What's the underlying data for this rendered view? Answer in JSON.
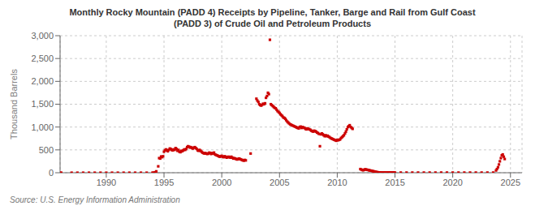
{
  "chart_data": {
    "type": "scatter",
    "title": "Monthly Rocky Mountain (PADD 4) Receipts by Pipeline, Tanker, Barge and Rail from Gulf Coast\n(PADD 3) of Crude Oil and Petroleum Products",
    "y_label": "Thousand Barrels",
    "annotations": [
      "Source: U.S. Energy Information Administration"
    ],
    "color": "#cc0000",
    "marker": "square",
    "grid": true,
    "xlim": [
      1986,
      2026
    ],
    "ylim": [
      0,
      3000
    ],
    "xticks": [
      1990,
      1995,
      2000,
      2005,
      2010,
      2015,
      2020,
      2025
    ],
    "yticks": [
      0,
      500,
      {
        "value": 1000,
        "label": "1,000"
      },
      {
        "value": 1500,
        "label": "1,500"
      },
      {
        "value": 2000,
        "label": "2,000"
      },
      {
        "value": 2500,
        "label": "2,500"
      },
      {
        "value": 3000,
        "label": "3,000"
      }
    ],
    "x": [
      1986.0,
      1986.1,
      1987.0,
      1987.5,
      1988.0,
      1988.5,
      1989.0,
      1989.5,
      1990.0,
      1990.5,
      1991.0,
      1991.5,
      1992.0,
      1992.5,
      1993.0,
      1993.5,
      1994.0,
      1994.08,
      1994.17,
      1994.25,
      1994.33,
      1994.5,
      1994.58,
      1994.67,
      1994.75,
      1994.83,
      1994.92,
      1995.0,
      1995.08,
      1995.17,
      1995.25,
      1995.33,
      1995.42,
      1995.5,
      1995.58,
      1995.67,
      1995.75,
      1995.83,
      1995.92,
      1996.0,
      1996.08,
      1996.17,
      1996.25,
      1996.33,
      1996.42,
      1996.5,
      1996.58,
      1996.67,
      1996.75,
      1996.83,
      1996.92,
      1997.0,
      1997.08,
      1997.17,
      1997.25,
      1997.33,
      1997.42,
      1997.5,
      1997.58,
      1997.67,
      1997.75,
      1997.83,
      1997.92,
      1998.0,
      1998.08,
      1998.17,
      1998.25,
      1998.33,
      1998.42,
      1998.5,
      1998.58,
      1998.67,
      1998.75,
      1998.83,
      1998.92,
      1999.0,
      1999.08,
      1999.17,
      1999.25,
      1999.33,
      1999.42,
      1999.5,
      1999.58,
      1999.67,
      1999.75,
      1999.83,
      1999.92,
      2000.0,
      2000.08,
      2000.17,
      2000.25,
      2000.33,
      2000.42,
      2000.5,
      2000.58,
      2000.67,
      2000.75,
      2000.83,
      2000.92,
      2001.0,
      2001.08,
      2001.17,
      2001.25,
      2001.33,
      2001.42,
      2001.5,
      2001.58,
      2001.67,
      2001.75,
      2001.83,
      2001.92,
      2002.0,
      2002.08,
      2002.5,
      2003.0,
      2003.08,
      2003.17,
      2003.25,
      2003.33,
      2003.42,
      2003.5,
      2003.58,
      2003.67,
      2003.75,
      2003.83,
      2003.92,
      2004.0,
      2004.08,
      2004.17,
      2004.25,
      2004.33,
      2004.42,
      2004.5,
      2004.58,
      2004.67,
      2004.75,
      2004.83,
      2004.92,
      2005.0,
      2005.08,
      2005.17,
      2005.25,
      2005.33,
      2005.42,
      2005.5,
      2005.58,
      2005.67,
      2005.75,
      2005.83,
      2005.92,
      2006.0,
      2006.08,
      2006.17,
      2006.25,
      2006.33,
      2006.42,
      2006.5,
      2006.58,
      2006.67,
      2006.75,
      2006.83,
      2006.92,
      2007.0,
      2007.08,
      2007.17,
      2007.25,
      2007.33,
      2007.42,
      2007.5,
      2007.58,
      2007.67,
      2007.75,
      2007.83,
      2007.92,
      2008.0,
      2008.08,
      2008.17,
      2008.25,
      2008.33,
      2008.42,
      2008.5,
      2008.58,
      2008.67,
      2008.75,
      2008.83,
      2008.92,
      2009.0,
      2009.08,
      2009.17,
      2009.25,
      2009.33,
      2009.42,
      2009.5,
      2009.58,
      2009.67,
      2009.75,
      2009.83,
      2009.92,
      2010.0,
      2010.08,
      2010.17,
      2010.25,
      2010.33,
      2010.42,
      2010.5,
      2010.58,
      2010.67,
      2010.75,
      2010.83,
      2010.92,
      2011.0,
      2011.08,
      2011.17,
      2011.25,
      2011.33,
      2012.0,
      2012.08,
      2012.17,
      2012.25,
      2012.33,
      2012.42,
      2012.5,
      2012.58,
      2012.67,
      2012.75,
      2012.83,
      2012.92,
      2013.0,
      2013.08,
      2013.17,
      2013.25,
      2013.33,
      2013.42,
      2013.5,
      2013.58,
      2013.67,
      2013.75,
      2013.83,
      2013.92,
      2014.0,
      2014.08,
      2014.17,
      2014.25,
      2014.33,
      2014.42,
      2014.5,
      2014.58,
      2014.67,
      2014.75,
      2014.83,
      2014.92,
      2015.0,
      2015.5,
      2016.0,
      2016.5,
      2017.0,
      2017.5,
      2018.0,
      2018.5,
      2019.0,
      2019.5,
      2020.0,
      2020.5,
      2021.0,
      2021.5,
      2022.0,
      2022.5,
      2023.0,
      2023.5,
      2023.75,
      2023.83,
      2023.92,
      2024.0,
      2024.08,
      2024.17,
      2024.25,
      2024.33,
      2024.42,
      2024.5
    ],
    "values": [
      0,
      0,
      0,
      0,
      0,
      0,
      0,
      0,
      0,
      0,
      0,
      0,
      0,
      0,
      0,
      0,
      0,
      0,
      0,
      10,
      30,
      140,
      320,
      310,
      355,
      340,
      360,
      460,
      490,
      510,
      490,
      470,
      500,
      530,
      520,
      500,
      490,
      510,
      500,
      540,
      520,
      480,
      500,
      460,
      450,
      480,
      470,
      490,
      510,
      500,
      520,
      560,
      580,
      570,
      550,
      560,
      540,
      530,
      550,
      560,
      540,
      520,
      490,
      480,
      500,
      480,
      460,
      440,
      430,
      420,
      430,
      420,
      410,
      420,
      440,
      430,
      410,
      430,
      420,
      440,
      400,
      390,
      380,
      370,
      360,
      350,
      360,
      370,
      350,
      340,
      360,
      350,
      330,
      340,
      350,
      340,
      330,
      350,
      330,
      310,
      320,
      310,
      300,
      290,
      300,
      310,
      300,
      290,
      280,
      270,
      265,
      280,
      270,
      420,
      1620,
      1580,
      1550,
      1500,
      1480,
      1470,
      1490,
      1510,
      1500,
      1520,
      1640,
      1680,
      1750,
      1720,
      2910,
      1500,
      1480,
      1460,
      1440,
      1420,
      1410,
      1380,
      1350,
      1330,
      1310,
      1280,
      1260,
      1240,
      1210,
      1200,
      1180,
      1150,
      1120,
      1100,
      1080,
      1060,
      1050,
      1040,
      1030,
      1020,
      1010,
      1000,
      990,
      980,
      970,
      1000,
      1010,
      980,
      1000,
      990,
      980,
      960,
      950,
      970,
      960,
      950,
      940,
      920,
      910,
      900,
      920,
      910,
      900,
      880,
      870,
      850,
      580,
      840,
      860,
      840,
      820,
      800,
      820,
      800,
      810,
      790,
      780,
      760,
      750,
      740,
      730,
      720,
      710,
      700,
      720,
      710,
      720,
      730,
      760,
      780,
      800,
      820,
      860,
      900,
      950,
      1000,
      1020,
      1040,
      1000,
      980,
      960,
      80,
      70,
      60,
      55,
      65,
      75,
      70,
      65,
      60,
      55,
      50,
      45,
      40,
      35,
      30,
      25,
      20,
      15,
      10,
      8,
      6,
      5,
      4,
      3,
      3,
      3,
      3,
      3,
      3,
      3,
      3,
      3,
      3,
      3,
      3,
      3,
      3,
      3,
      3,
      3,
      3,
      3,
      3,
      3,
      3,
      3,
      3,
      3,
      3,
      3,
      3,
      3,
      3,
      3,
      50,
      80,
      120,
      180,
      250,
      320,
      380,
      400,
      350,
      300
    ]
  }
}
